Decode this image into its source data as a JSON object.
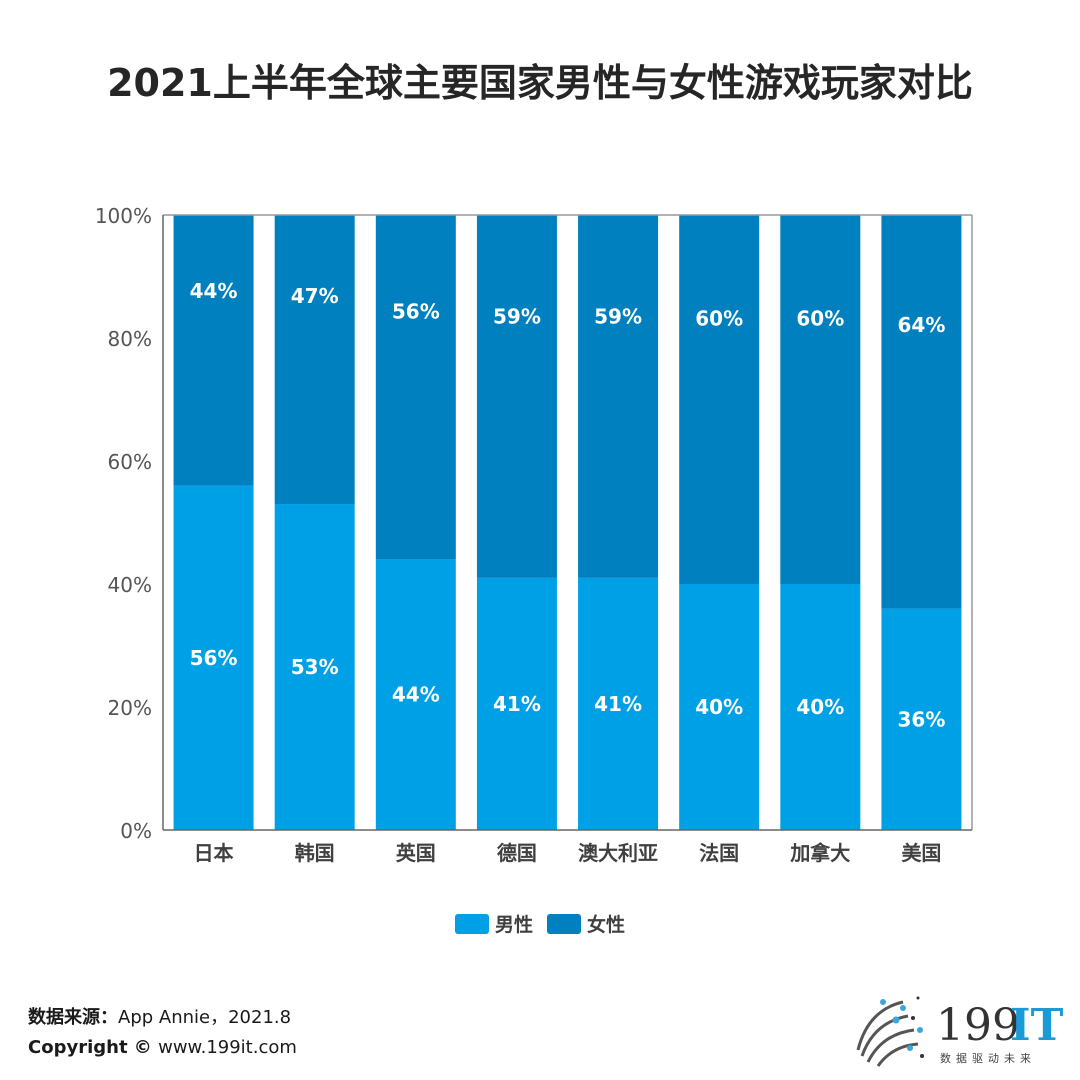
{
  "chart_data": {
    "type": "bar",
    "stacked": true,
    "title": "2021上半年全球主要国家男性与女性游戏玩家对比",
    "categories": [
      "日本",
      "韩国",
      "英国",
      "德国",
      "澳大利亚",
      "法国",
      "加拿大",
      "美国"
    ],
    "series": [
      {
        "name": "男性",
        "values": [
          56,
          53,
          44,
          41,
          41,
          40,
          40,
          36
        ],
        "labels": [
          "56%",
          "53%",
          "44%",
          "41%",
          "41%",
          "40%",
          "40%",
          "36%"
        ],
        "color": "#00A0E6"
      },
      {
        "name": "女性",
        "values": [
          44,
          47,
          56,
          59,
          59,
          60,
          60,
          64
        ],
        "labels": [
          "44%",
          "47%",
          "56%",
          "59%",
          "59%",
          "60%",
          "60%",
          "64%"
        ],
        "color": "#0080BE"
      }
    ],
    "ylim": [
      0,
      100
    ],
    "yticks": [
      "0%",
      "20%",
      "40%",
      "60%",
      "80%",
      "100%"
    ],
    "legend": "bottom",
    "grid": false
  },
  "footer": {
    "source_label": "数据来源：",
    "source_value": "App Annie，2021.8",
    "copyright_label": "Copyright ©",
    "copyright_value": "www.199it.com"
  },
  "logo": {
    "text_dark": "199",
    "text_blue": "IT",
    "tagline": "数据驱动未来"
  }
}
